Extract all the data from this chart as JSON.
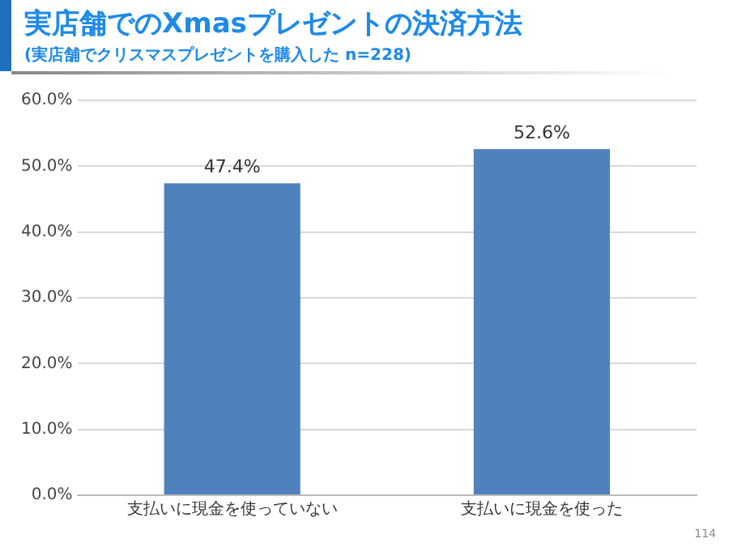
{
  "chart_data": {
    "type": "bar",
    "title": "実店舗でのXmasプレゼントの決済方法",
    "subtitle": "(実店舗でクリスマスプレゼントを購入した n=228)",
    "categories": [
      "支払いに現金を使っていない",
      "支払いに現金を使った"
    ],
    "values": [
      47.4,
      52.6
    ],
    "value_labels": [
      "47.4%",
      "52.6%"
    ],
    "color": "#4f81bd",
    "ylim": [
      0,
      60
    ],
    "yticks": [
      {
        "value": 0,
        "label": "0.0%"
      },
      {
        "value": 10,
        "label": "10.0%"
      },
      {
        "value": 20,
        "label": "20.0%"
      },
      {
        "value": 30,
        "label": "30.0%"
      },
      {
        "value": 40,
        "label": "40.0%"
      },
      {
        "value": 50,
        "label": "50.0%"
      },
      {
        "value": 60,
        "label": "60.0%"
      }
    ],
    "grid": "y",
    "legend": false,
    "annotations": [
      "114"
    ]
  }
}
